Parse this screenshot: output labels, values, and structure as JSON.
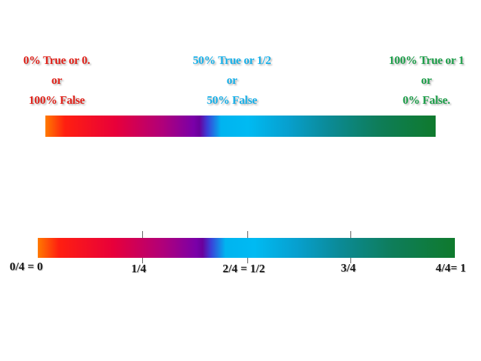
{
  "top_labels": [
    {
      "color": "#e0241c",
      "lines": [
        "0% True or 0.",
        "or",
        "100% False"
      ]
    },
    {
      "color": "#1ab0e8",
      "lines": [
        "50% True or 1/2",
        "or",
        "50% False"
      ]
    },
    {
      "color": "#1e9e4a",
      "lines": [
        "100% True or 1",
        "or",
        "0% False."
      ]
    }
  ],
  "scale": {
    "ticks": [
      {
        "value": 0,
        "label": "0/4 = 0"
      },
      {
        "value": 0.25,
        "label": "1/4"
      },
      {
        "value": 0.5,
        "label": "2/4 = 1/2"
      },
      {
        "value": 0.75,
        "label": "3/4"
      },
      {
        "value": 1,
        "label": "4/4= 1"
      }
    ]
  },
  "gradient_colors": [
    "#ff7a00",
    "#e8003a",
    "#7a00a8",
    "#00baf2",
    "#0b8b99",
    "#0f7a2d"
  ]
}
